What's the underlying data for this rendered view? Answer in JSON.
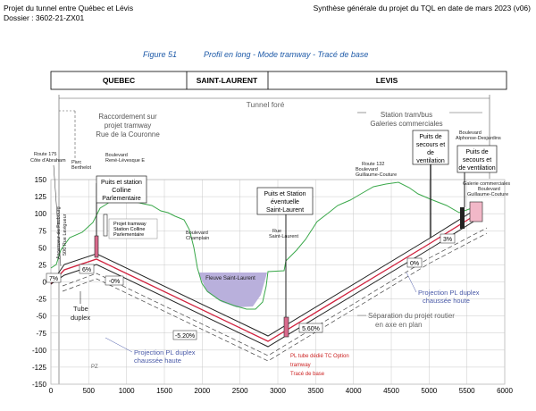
{
  "header": {
    "project": "Projet du tunnel entre Québec et Lévis",
    "dossier": "Dossier : 3602-21-ZX01",
    "synthesis": "Synthèse générale du projet du TQL en date de mars 2023 (v06)"
  },
  "figure": {
    "number": "Figure 51",
    "caption": "Profil en long - Mode tramway - Tracé de base"
  },
  "sectors": [
    "QUEBEC",
    "SAINT-LAURENT",
    "LEVIS"
  ],
  "top_labels": {
    "tunnel": "Tunnel foré",
    "raccordement": "Raccordement sur projet tramway Rue de la Couronne",
    "station": "Station tram/bus Galeries commerciales"
  },
  "annotations": {
    "route175": "Route 175 Côte d'Abraham",
    "ascenseur": "Ascenseur du Faubourg 506 Rue Lavigueur",
    "parc": "Parc Berthelot",
    "bld_rene": "Boulevard René-Lévesque E",
    "puits_colline": "Puits et station Colline Parlementaire",
    "projet_tramway": "Projet tramway Station Colline Parlementaire",
    "bld_champlain": "Boulevard Champlain",
    "fleuve": "Fleuve Saint-Laurent",
    "rue_saint_laurent": "Rue Saint-Laurent",
    "puits_saint_laurent": "Puits et Station éventuelle Saint-Laurent",
    "route132": "Route 132 Boulevard Guillaume-Couture",
    "puits_secours_1": "Puits de secours et de ventilation",
    "puits_secours_2": "Puits de secours et de ventilation",
    "bld_alphonse": "Boulevard Alphonse-Desjardins",
    "galerie": "Galerie commerciales Boulevard Guillaume-Couture",
    "tube_duplex": "Tube duplex",
    "projection_left": "Projection PL duplex chaussée haute",
    "projection_right": "Projection PL duplex chaussée haute",
    "separation": "Séparation du projet routier en axe en plan",
    "legend_1": "PL tube dédié TC Option",
    "legend_2": "tramway",
    "legend_3": "Tracé de base",
    "pz": "PZ"
  },
  "grades": [
    "7%",
    "6%",
    "-0%",
    "-5.20%",
    "5.60%",
    "0%",
    "3%"
  ],
  "colors": {
    "terrain": "#3aa84a",
    "tunnel": "#222222",
    "track": "#d0213d",
    "water": "#b9b0dc",
    "caption": "#1e5aa8",
    "legend": "#cc2222"
  },
  "axes": {
    "x_ticks": [
      "0",
      "500",
      "1000",
      "1500",
      "2000",
      "2500",
      "3000",
      "3500",
      "4000",
      "4500",
      "5000",
      "5500",
      "6000"
    ],
    "y_ticks": [
      "150",
      "125",
      "100",
      "75",
      "50",
      "25",
      "0",
      "-25",
      "-50",
      "-75",
      "-100",
      "-125",
      "-150"
    ]
  }
}
